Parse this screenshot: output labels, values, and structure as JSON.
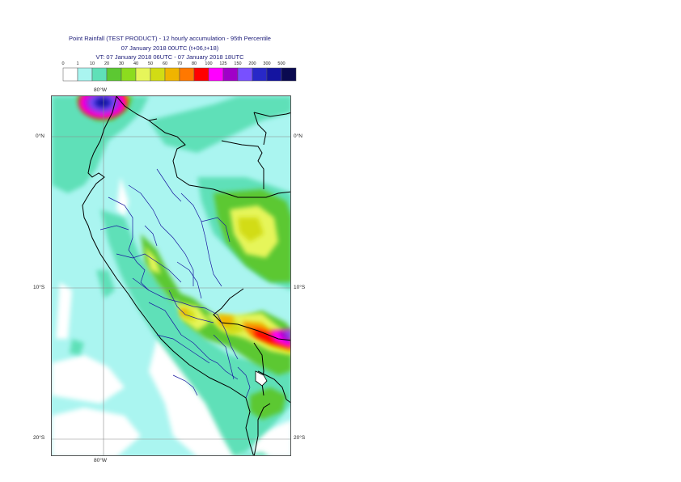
{
  "header": {
    "title": "Point Rainfall (TEST PRODUCT) - 12 hourly accumulation - 95th Percentile",
    "base_time": "07 January 2018 00UTC (t+06,t+18)",
    "valid_time": "VT: 07 January 2018 06UTC - 07 January 2018 18UTC"
  },
  "legend": {
    "ticks": [
      "0",
      "1",
      "10",
      "20",
      "30",
      "40",
      "50",
      "60",
      "70",
      "80",
      "100",
      "125",
      "150",
      "200",
      "300",
      "500"
    ],
    "colors": [
      "#ffffff",
      "#aaf5f0",
      "#5fe0b8",
      "#5cc832",
      "#8cdc1e",
      "#e6f55a",
      "#d2dc14",
      "#f0b400",
      "#ff7800",
      "#ff0000",
      "#ff00ff",
      "#a000c8",
      "#7850ff",
      "#2828c8",
      "#1414a0",
      "#0a0a50"
    ]
  },
  "map": {
    "lon_label_top": "80°W",
    "lon_label_bottom": "80°W",
    "lat_labels": [
      {
        "left": "0°N",
        "right": "0°N"
      },
      {
        "left": "10°S",
        "right": "10°S"
      },
      {
        "left": "20°S",
        "right": "20°S"
      }
    ],
    "background_color": "#aaf5f0",
    "land_outline_color": "#000000",
    "admin_boundary_color": "#1a1aa0"
  }
}
